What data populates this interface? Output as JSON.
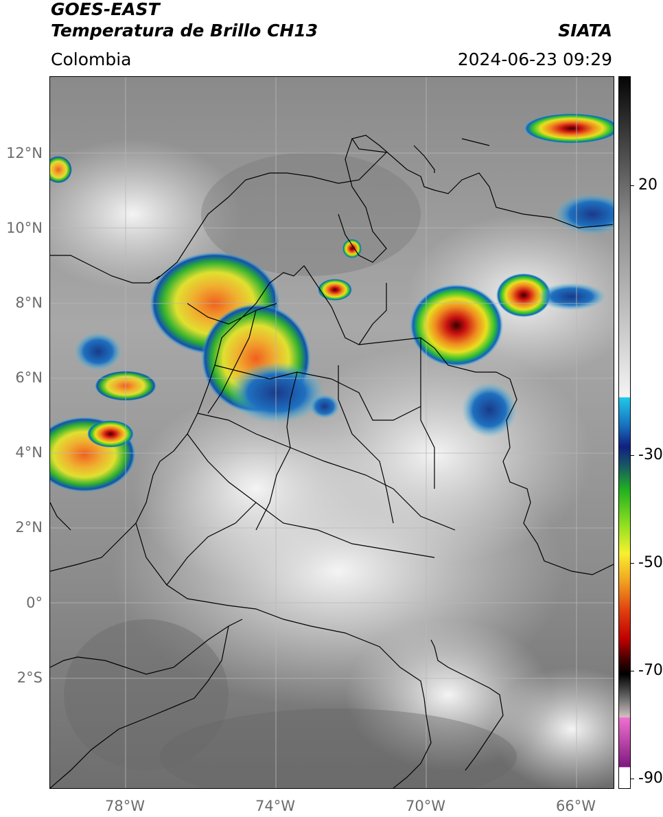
{
  "header": {
    "satellite": "GOES-EAST",
    "product": "Temperatura de Brillo CH13",
    "region": "Colombia",
    "agency": "SIATA",
    "datetime": "2024-06-23 09:29"
  },
  "map": {
    "lat_labels": [
      "12°N",
      "10°N",
      "8°N",
      "6°N",
      "4°N",
      "2°N",
      "0°",
      "2°S"
    ],
    "lon_labels": [
      "78°W",
      "74°W",
      "70°W",
      "66°W"
    ]
  },
  "colorbar": {
    "ticks": [
      "20",
      "-30",
      "-50",
      "-70",
      "-90"
    ],
    "unit": ""
  }
}
